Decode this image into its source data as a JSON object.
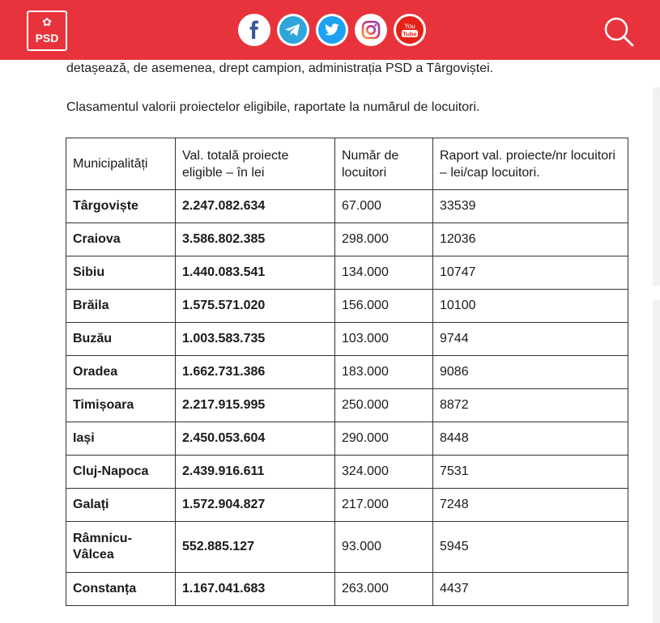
{
  "header": {
    "brand": "PSD",
    "social": [
      {
        "icon": "facebook-icon"
      },
      {
        "icon": "telegram-icon"
      },
      {
        "icon": "twitter-icon"
      },
      {
        "icon": "instagram-icon"
      },
      {
        "icon": "youtube-icon",
        "label_top": "You",
        "label_bottom": "Tube"
      }
    ],
    "search_icon": "search-icon",
    "colors": {
      "brand": "#e8333c",
      "facebook": "#3b5998",
      "telegram": "#2ea6da",
      "twitter": "#1da1f2",
      "instagram": "#c13584",
      "youtube": "#e62117"
    }
  },
  "article": {
    "intro": "detașează, de asemenea, drept campion, administrația PSD a Târgoviștei.",
    "lead": "Clasamentul valorii proiectelor eligibile, raportate la numărul de locuitori."
  },
  "table": {
    "headers": [
      "Municipalități",
      "Val. totală proiecte eligible – în lei",
      "Număr de locuitori",
      "Raport val. proiecte/nr locuitori – lei/cap locuitori."
    ],
    "rows": [
      [
        "Târgoviște",
        "2.247.082.634",
        "67.000",
        "33539"
      ],
      [
        "Craiova",
        "3.586.802.385",
        "298.000",
        "12036"
      ],
      [
        "Sibiu",
        "1.440.083.541",
        "134.000",
        "10747"
      ],
      [
        "Brăila",
        "1.575.571.020",
        "156.000",
        "10100"
      ],
      [
        "Buzău",
        "1.003.583.735",
        "103.000",
        "9744"
      ],
      [
        "Oradea",
        "1.662.731.386",
        "183.000",
        "9086"
      ],
      [
        "Timișoara",
        "2.217.915.995",
        "250.000",
        "8872"
      ],
      [
        "Iași",
        "2.450.053.604",
        "290.000",
        "8448"
      ],
      [
        "Cluj-Napoca",
        "2.439.916.611",
        "324.000",
        "7531"
      ],
      [
        "Galați",
        "1.572.904.827",
        "217.000",
        "7248"
      ],
      [
        "Râmnicu-Vâlcea",
        "552.885.127",
        "93.000",
        "5945"
      ],
      [
        "Constanța",
        "1.167.041.683",
        "263.000",
        "4437"
      ]
    ]
  }
}
